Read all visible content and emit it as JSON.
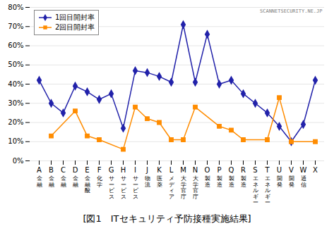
{
  "chart_data": {
    "type": "line",
    "title": "[図1　ITセキュリティ予防接種実施結果]",
    "categories": [
      "A",
      "B",
      "C",
      "D",
      "E",
      "F",
      "G",
      "H",
      "I",
      "J",
      "K",
      "L",
      "M",
      "N",
      "O",
      "P",
      "Q",
      "R",
      "S",
      "T",
      "U",
      "V",
      "W",
      "X"
    ],
    "series": [
      {
        "name": "1回目開封率",
        "color": "#2222AA",
        "marker": "diamond",
        "values": [
          42,
          30,
          25,
          39,
          36,
          32,
          35,
          17,
          47,
          46,
          44,
          41,
          71,
          41,
          66,
          40,
          42,
          35,
          30,
          25,
          18,
          10,
          19,
          42
        ]
      },
      {
        "name": "2回目開封率",
        "color": "#FF8C00",
        "marker": "square",
        "values": [
          null,
          13,
          null,
          26,
          13,
          11,
          null,
          6,
          28,
          22,
          20,
          11,
          11,
          28,
          null,
          18,
          16,
          11,
          null,
          11,
          33,
          10,
          null,
          10
        ]
      }
    ],
    "ylim": [
      0,
      80
    ],
    "yticks": [
      {
        "value": 0,
        "label": "0%"
      },
      {
        "value": 10,
        "label": "10%"
      },
      {
        "value": 20,
        "label": "20%"
      },
      {
        "value": 30,
        "label": "30%"
      },
      {
        "value": 40,
        "label": "40%"
      },
      {
        "value": 50,
        "label": "50%"
      },
      {
        "value": 60,
        "label": "60%"
      },
      {
        "value": 70,
        "label": "70%"
      },
      {
        "value": 80,
        "label": "80%"
      }
    ],
    "grid": true,
    "legend": "upper left",
    "annotations": [
      {
        "x": "A",
        "text": "金融"
      },
      {
        "x": "B",
        "text": "金融"
      },
      {
        "x": "C",
        "text": "金融"
      },
      {
        "x": "D",
        "text": "金融"
      },
      {
        "x": "E",
        "text": "金融酸"
      },
      {
        "x": "F",
        "text": "化学"
      },
      {
        "x": "G",
        "text": "サービス"
      },
      {
        "x": "H",
        "text": "サービス"
      },
      {
        "x": "I",
        "text": "サービス"
      },
      {
        "x": "J",
        "text": "物流"
      },
      {
        "x": "K",
        "text": "医薬"
      },
      {
        "x": "L",
        "text": "メディア"
      },
      {
        "x": "M",
        "text": "大学官庁"
      },
      {
        "x": "N",
        "text": "大学官庁"
      },
      {
        "x": "O",
        "text": "製造"
      },
      {
        "x": "P",
        "text": "製造"
      },
      {
        "x": "Q",
        "text": "製造"
      },
      {
        "x": "R",
        "text": "製造"
      },
      {
        "x": "S",
        "text": "エネルギー"
      },
      {
        "x": "T",
        "text": "エネルギー"
      },
      {
        "x": "U",
        "text": "開発"
      },
      {
        "x": "V",
        "text": "開発"
      },
      {
        "x": "W",
        "text": "通信"
      },
      {
        "text": "SCANNETSECURITY.NE.JP"
      }
    ]
  }
}
